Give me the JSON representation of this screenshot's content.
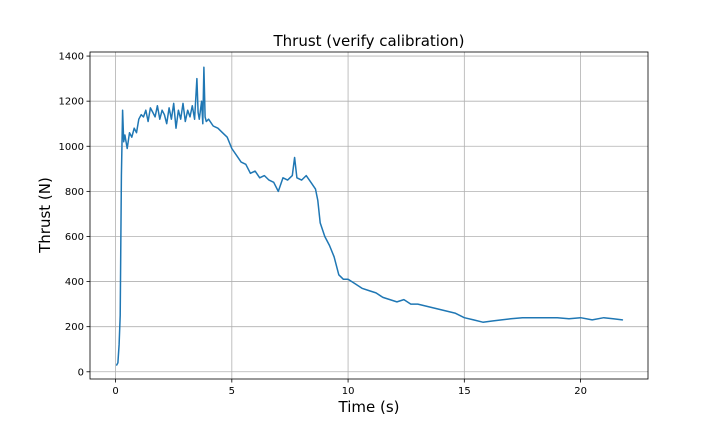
{
  "chart_data": {
    "type": "line",
    "title": "Thrust (verify calibration)",
    "xlabel": "Time (s)",
    "ylabel": "Thrust (N)",
    "xlim": [
      -1.1,
      22.9
    ],
    "ylim": [
      -32,
      1418
    ],
    "xticks": [
      0,
      5,
      10,
      15,
      20
    ],
    "yticks": [
      0,
      200,
      400,
      600,
      800,
      1000,
      1200,
      1400
    ],
    "grid": true,
    "line_color": "#1f77b4",
    "series": [
      {
        "x": [
          0.05,
          0.1,
          0.15,
          0.2,
          0.25,
          0.3,
          0.35,
          0.4,
          0.5,
          0.6,
          0.7,
          0.8,
          0.9,
          1.0,
          1.1,
          1.2,
          1.3,
          1.4,
          1.5,
          1.6,
          1.7,
          1.8,
          1.9,
          2.0,
          2.1,
          2.2,
          2.3,
          2.4,
          2.5,
          2.6,
          2.7,
          2.8,
          2.9,
          3.0,
          3.1,
          3.2,
          3.3,
          3.4,
          3.5,
          3.55,
          3.6,
          3.7,
          3.75,
          3.8,
          3.85,
          3.9,
          4.0,
          4.2,
          4.4,
          4.6,
          4.8,
          5.0,
          5.2,
          5.4,
          5.6,
          5.8,
          6.0,
          6.2,
          6.4,
          6.6,
          6.8,
          7.0,
          7.2,
          7.4,
          7.6,
          7.7,
          7.8,
          8.0,
          8.2,
          8.4,
          8.6,
          8.7,
          8.8,
          9.0,
          9.2,
          9.4,
          9.6,
          9.8,
          10.0,
          10.3,
          10.6,
          10.9,
          11.2,
          11.5,
          11.8,
          12.1,
          12.4,
          12.7,
          13.0,
          13.4,
          13.8,
          14.2,
          14.6,
          15.0,
          15.4,
          15.8,
          16.2,
          16.6,
          17.0,
          17.5,
          18.0,
          18.5,
          19.0,
          19.5,
          20.0,
          20.5,
          21.0,
          21.4,
          21.8
        ],
        "y": [
          30,
          40,
          120,
          250,
          870,
          1160,
          1020,
          1050,
          990,
          1060,
          1040,
          1080,
          1060,
          1120,
          1140,
          1130,
          1160,
          1110,
          1170,
          1150,
          1130,
          1180,
          1120,
          1160,
          1140,
          1100,
          1170,
          1120,
          1190,
          1080,
          1160,
          1120,
          1190,
          1110,
          1160,
          1130,
          1180,
          1120,
          1300,
          1150,
          1120,
          1200,
          1100,
          1350,
          1130,
          1110,
          1120,
          1090,
          1080,
          1060,
          1040,
          990,
          960,
          930,
          920,
          880,
          890,
          860,
          870,
          850,
          840,
          800,
          860,
          850,
          870,
          950,
          860,
          850,
          870,
          840,
          810,
          760,
          660,
          600,
          560,
          510,
          430,
          410,
          410,
          390,
          370,
          360,
          350,
          330,
          320,
          310,
          320,
          300,
          300,
          290,
          280,
          270,
          260,
          240,
          230,
          220,
          225,
          230,
          235,
          240,
          240,
          240,
          240,
          235,
          240,
          230,
          240,
          235,
          230
        ]
      }
    ]
  }
}
